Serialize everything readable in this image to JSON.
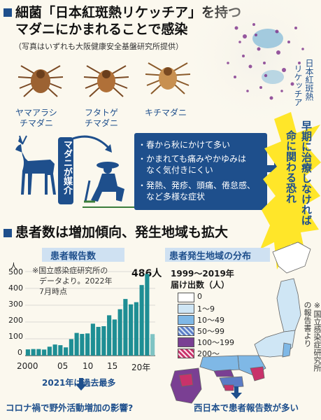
{
  "section1": {
    "title_line1": "細菌「日本紅斑熱リケッチア」を持つ",
    "title_line2": "マダニにかまれることで感染",
    "photo_credit": "（写真はいずれも大阪健康安全基盤研究所提供）",
    "bacteria_label_1": "日本紅斑熱",
    "bacteria_label_2": "リケッチア",
    "ticks": [
      {
        "line1": "ヤマアラシ",
        "line2": "チマダニ"
      },
      {
        "line1": "フタトゲ",
        "line2": "チマダニ"
      },
      {
        "line1": "キチマダニ",
        "line2": ""
      }
    ],
    "vector_label": "マダニが媒介",
    "info_points": [
      "・春から秋にかけて多い",
      "・かまれても痛みやかゆみは",
      "　なく気付きにくい",
      "・発熱、発疹、頭痛、倦怠感、",
      "　など多様な症状"
    ],
    "warning_1": "早期に治療しなければ",
    "warning_2": "命に関わる恐れ"
  },
  "section2": {
    "title": "患者数は増加傾向、発生地域も拡大"
  },
  "chart_data": {
    "type": "bar",
    "title": "患者報告数",
    "ylabel": "人",
    "source_note_1": "※国立感染症研究所の",
    "source_note_2": "データより。2022年",
    "source_note_3": "7月時点",
    "ylim": [
      0,
      500
    ],
    "yticks": [
      "0",
      "100",
      "200",
      "300",
      "400",
      "500"
    ],
    "xticks": [
      "2000",
      "05",
      "10",
      "15",
      "20年"
    ],
    "x": [
      1999,
      2000,
      2001,
      2002,
      2003,
      2004,
      2005,
      2006,
      2007,
      2008,
      2009,
      2010,
      2011,
      2012,
      2013,
      2014,
      2015,
      2016,
      2017,
      2018,
      2019,
      2020,
      2021,
      2022
    ],
    "values": [
      37,
      39,
      39,
      36,
      53,
      66,
      62,
      49,
      98,
      135,
      129,
      132,
      190,
      171,
      175,
      240,
      215,
      276,
      337,
      305,
      318,
      420,
      486,
      128
    ],
    "peak_label": "486人",
    "annotation": "2021年は過去最多",
    "caption": "コロナ禍で野外活動増加の影響?"
  },
  "map": {
    "title": "患者発生地域の分布",
    "period": "1999〜2019年",
    "subtitle": "届け出数（人）",
    "legend": [
      {
        "label": "0",
        "color": "#ffffff"
      },
      {
        "label": "1〜9",
        "color": "#cfe6f5"
      },
      {
        "label": "10〜49",
        "color": "#7fb8e6"
      },
      {
        "label": "50〜99",
        "color": "#5b7cc6"
      },
      {
        "label": "100〜199",
        "color": "#7a3f93"
      },
      {
        "label": "200〜",
        "color": "#c8326a"
      }
    ],
    "source_note": "※国立感染症研究所の報告書より",
    "caption": "西日本で患者報告数が多い"
  }
}
